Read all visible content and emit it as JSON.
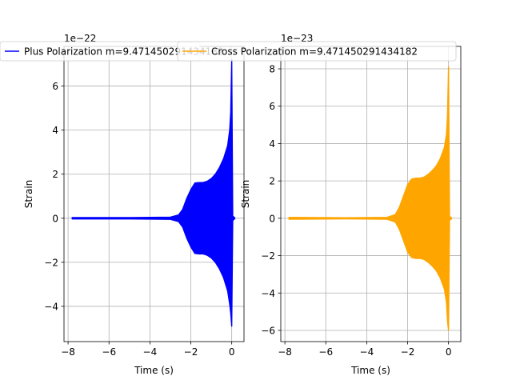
{
  "chart_data": [
    {
      "type": "line",
      "xlabel": "Time (s)",
      "ylabel": "Strain",
      "offset_text": "1e−22",
      "xlim": [
        -8.2,
        0.6
      ],
      "ylim": [
        -5.6,
        7.8
      ],
      "x_ticks": [
        -8,
        -6,
        -4,
        -2,
        0
      ],
      "x_tick_labels": [
        "−8",
        "−6",
        "−4",
        "−2",
        "0"
      ],
      "y_ticks": [
        -4,
        -2,
        0,
        2,
        4,
        6
      ],
      "y_tick_labels": [
        "−4",
        "−2",
        "0",
        "2",
        "4",
        "6"
      ],
      "grid": true,
      "legend_placement": "top",
      "series": [
        {
          "name": "Plus Polarization m=9.471450291434182",
          "color": "#0000ff",
          "envelope": {
            "x": [
              -7.8,
              -5.0,
              -3.0,
              -2.6,
              -2.4,
              -2.2,
              -2.0,
              -1.8,
              -1.6,
              -1.4,
              -1.2,
              -1.0,
              -0.8,
              -0.6,
              -0.4,
              -0.2,
              -0.1,
              -0.05,
              0.0,
              0.05,
              0.15
            ],
            "max": [
              0.03,
              0.03,
              0.05,
              0.15,
              0.4,
              0.9,
              1.3,
              1.6,
              1.62,
              1.62,
              1.68,
              1.8,
              2.0,
              2.3,
              2.7,
              3.3,
              4.0,
              4.8,
              7.2,
              0.1,
              0.02
            ],
            "min": [
              -0.03,
              -0.03,
              -0.05,
              -0.15,
              -0.4,
              -0.9,
              -1.3,
              -1.6,
              -1.62,
              -1.62,
              -1.68,
              -1.8,
              -2.0,
              -2.3,
              -2.7,
              -3.3,
              -3.9,
              -4.3,
              -4.9,
              -0.1,
              -0.02
            ]
          }
        }
      ]
    },
    {
      "type": "line",
      "xlabel": "Time (s)",
      "ylabel": "Strain",
      "offset_text": "1e−23",
      "xlim": [
        -8.2,
        0.6
      ],
      "ylim": [
        -6.6,
        9.2
      ],
      "x_ticks": [
        -8,
        -6,
        -4,
        -2,
        0
      ],
      "x_tick_labels": [
        "−8",
        "−6",
        "−4",
        "−2",
        "0"
      ],
      "y_ticks": [
        -6,
        -4,
        -2,
        0,
        2,
        4,
        6,
        8
      ],
      "y_tick_labels": [
        "−6",
        "−4",
        "−2",
        "0",
        "2",
        "4",
        "6",
        "8"
      ],
      "grid": true,
      "legend_placement": "top",
      "series": [
        {
          "name": "Cross Polarization m=9.471450291434182",
          "color": "#ffa500",
          "envelope": {
            "x": [
              -7.8,
              -5.0,
              -3.0,
              -2.6,
              -2.4,
              -2.2,
              -2.0,
              -1.8,
              -1.6,
              -1.4,
              -1.2,
              -1.0,
              -0.8,
              -0.6,
              -0.4,
              -0.2,
              -0.1,
              -0.05,
              0.0,
              0.05,
              0.15
            ],
            "max": [
              0.05,
              0.03,
              0.05,
              0.2,
              0.6,
              1.2,
              1.8,
              2.1,
              2.15,
              2.15,
              2.2,
              2.35,
              2.55,
              2.8,
              3.2,
              3.8,
              4.5,
              5.5,
              8.1,
              0.1,
              0.03
            ],
            "min": [
              -0.05,
              -0.03,
              -0.05,
              -0.2,
              -0.6,
              -1.2,
              -1.8,
              -2.1,
              -2.15,
              -2.15,
              -2.2,
              -2.35,
              -2.55,
              -2.8,
              -3.2,
              -3.8,
              -4.5,
              -5.5,
              -6.0,
              -0.1,
              -0.03
            ]
          }
        }
      ]
    }
  ]
}
